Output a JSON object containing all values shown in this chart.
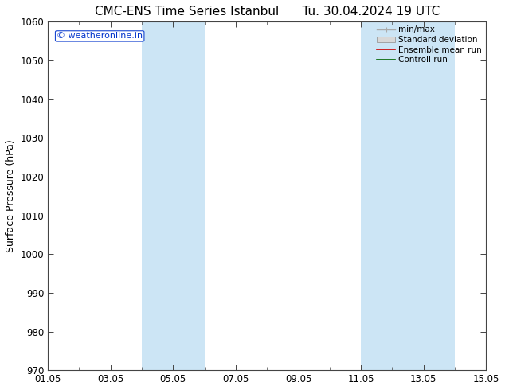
{
  "title": "CMC-ENS Time Series Istanbul",
  "title2": "Tu. 30.04.2024 19 UTC",
  "ylabel": "Surface Pressure (hPa)",
  "ylim": [
    970,
    1060
  ],
  "yticks": [
    970,
    980,
    990,
    1000,
    1010,
    1020,
    1030,
    1040,
    1050,
    1060
  ],
  "xtick_labels": [
    "01.05",
    "03.05",
    "05.05",
    "07.05",
    "09.05",
    "11.05",
    "13.05",
    "15.05"
  ],
  "xtick_offsets": [
    0,
    2,
    4,
    6,
    8,
    10,
    12,
    14
  ],
  "shaded_bands": [
    {
      "start_day": 3,
      "end_day": 5
    },
    {
      "start_day": 10,
      "end_day": 13
    }
  ],
  "shade_color": "#cce5f5",
  "watermark_text": "© weatheronline.in",
  "watermark_color": "#0033cc",
  "legend_labels": [
    "min/max",
    "Standard deviation",
    "Ensemble mean run",
    "Controll run"
  ],
  "legend_colors_line": [
    "#aaaaaa",
    "#cccccc",
    "#cc0000",
    "#006600"
  ],
  "background_color": "#ffffff",
  "spine_color": "#444444",
  "title_fontsize": 11,
  "tick_fontsize": 8.5,
  "ylabel_fontsize": 9
}
